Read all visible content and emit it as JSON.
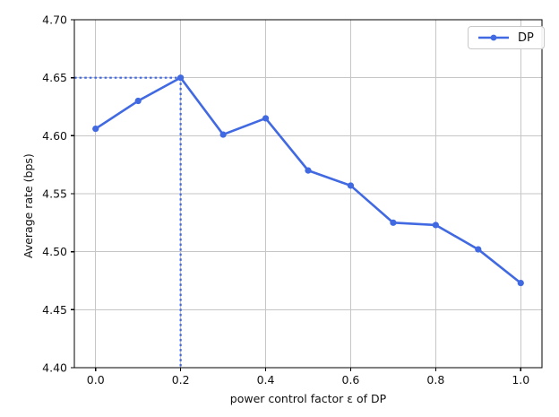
{
  "chart_data": {
    "type": "line",
    "title": "",
    "xlabel": "power control factor ε of DP",
    "ylabel": "Average rate (bps)",
    "x": [
      0.0,
      0.1,
      0.2,
      0.3,
      0.4,
      0.5,
      0.6,
      0.7,
      0.8,
      0.9,
      1.0
    ],
    "series": [
      {
        "name": "DP",
        "values": [
          4.606,
          4.63,
          4.65,
          4.601,
          4.615,
          4.57,
          4.557,
          4.525,
          4.523,
          4.502,
          4.473
        ],
        "color": "#4169e1",
        "marker": "circle"
      }
    ],
    "xlim": [
      -0.05,
      1.05
    ],
    "ylim": [
      4.4,
      4.7
    ],
    "xticks": [
      "0.0",
      "0.2",
      "0.4",
      "0.6",
      "0.8",
      "1.0"
    ],
    "yticks": [
      "4.40",
      "4.45",
      "4.50",
      "4.55",
      "4.60",
      "4.65",
      "4.70"
    ],
    "grid": true,
    "grid_color": "#c6c6c6",
    "spine_color": "#000000",
    "tick_label_color": "#111111",
    "legend_position": "upper right",
    "annotation": {
      "type": "dotted-guides",
      "x": 0.2,
      "y": 4.65,
      "color": "#4169e1",
      "note": "dotted lines from axes to peak point (0.2, 4.65)"
    }
  }
}
